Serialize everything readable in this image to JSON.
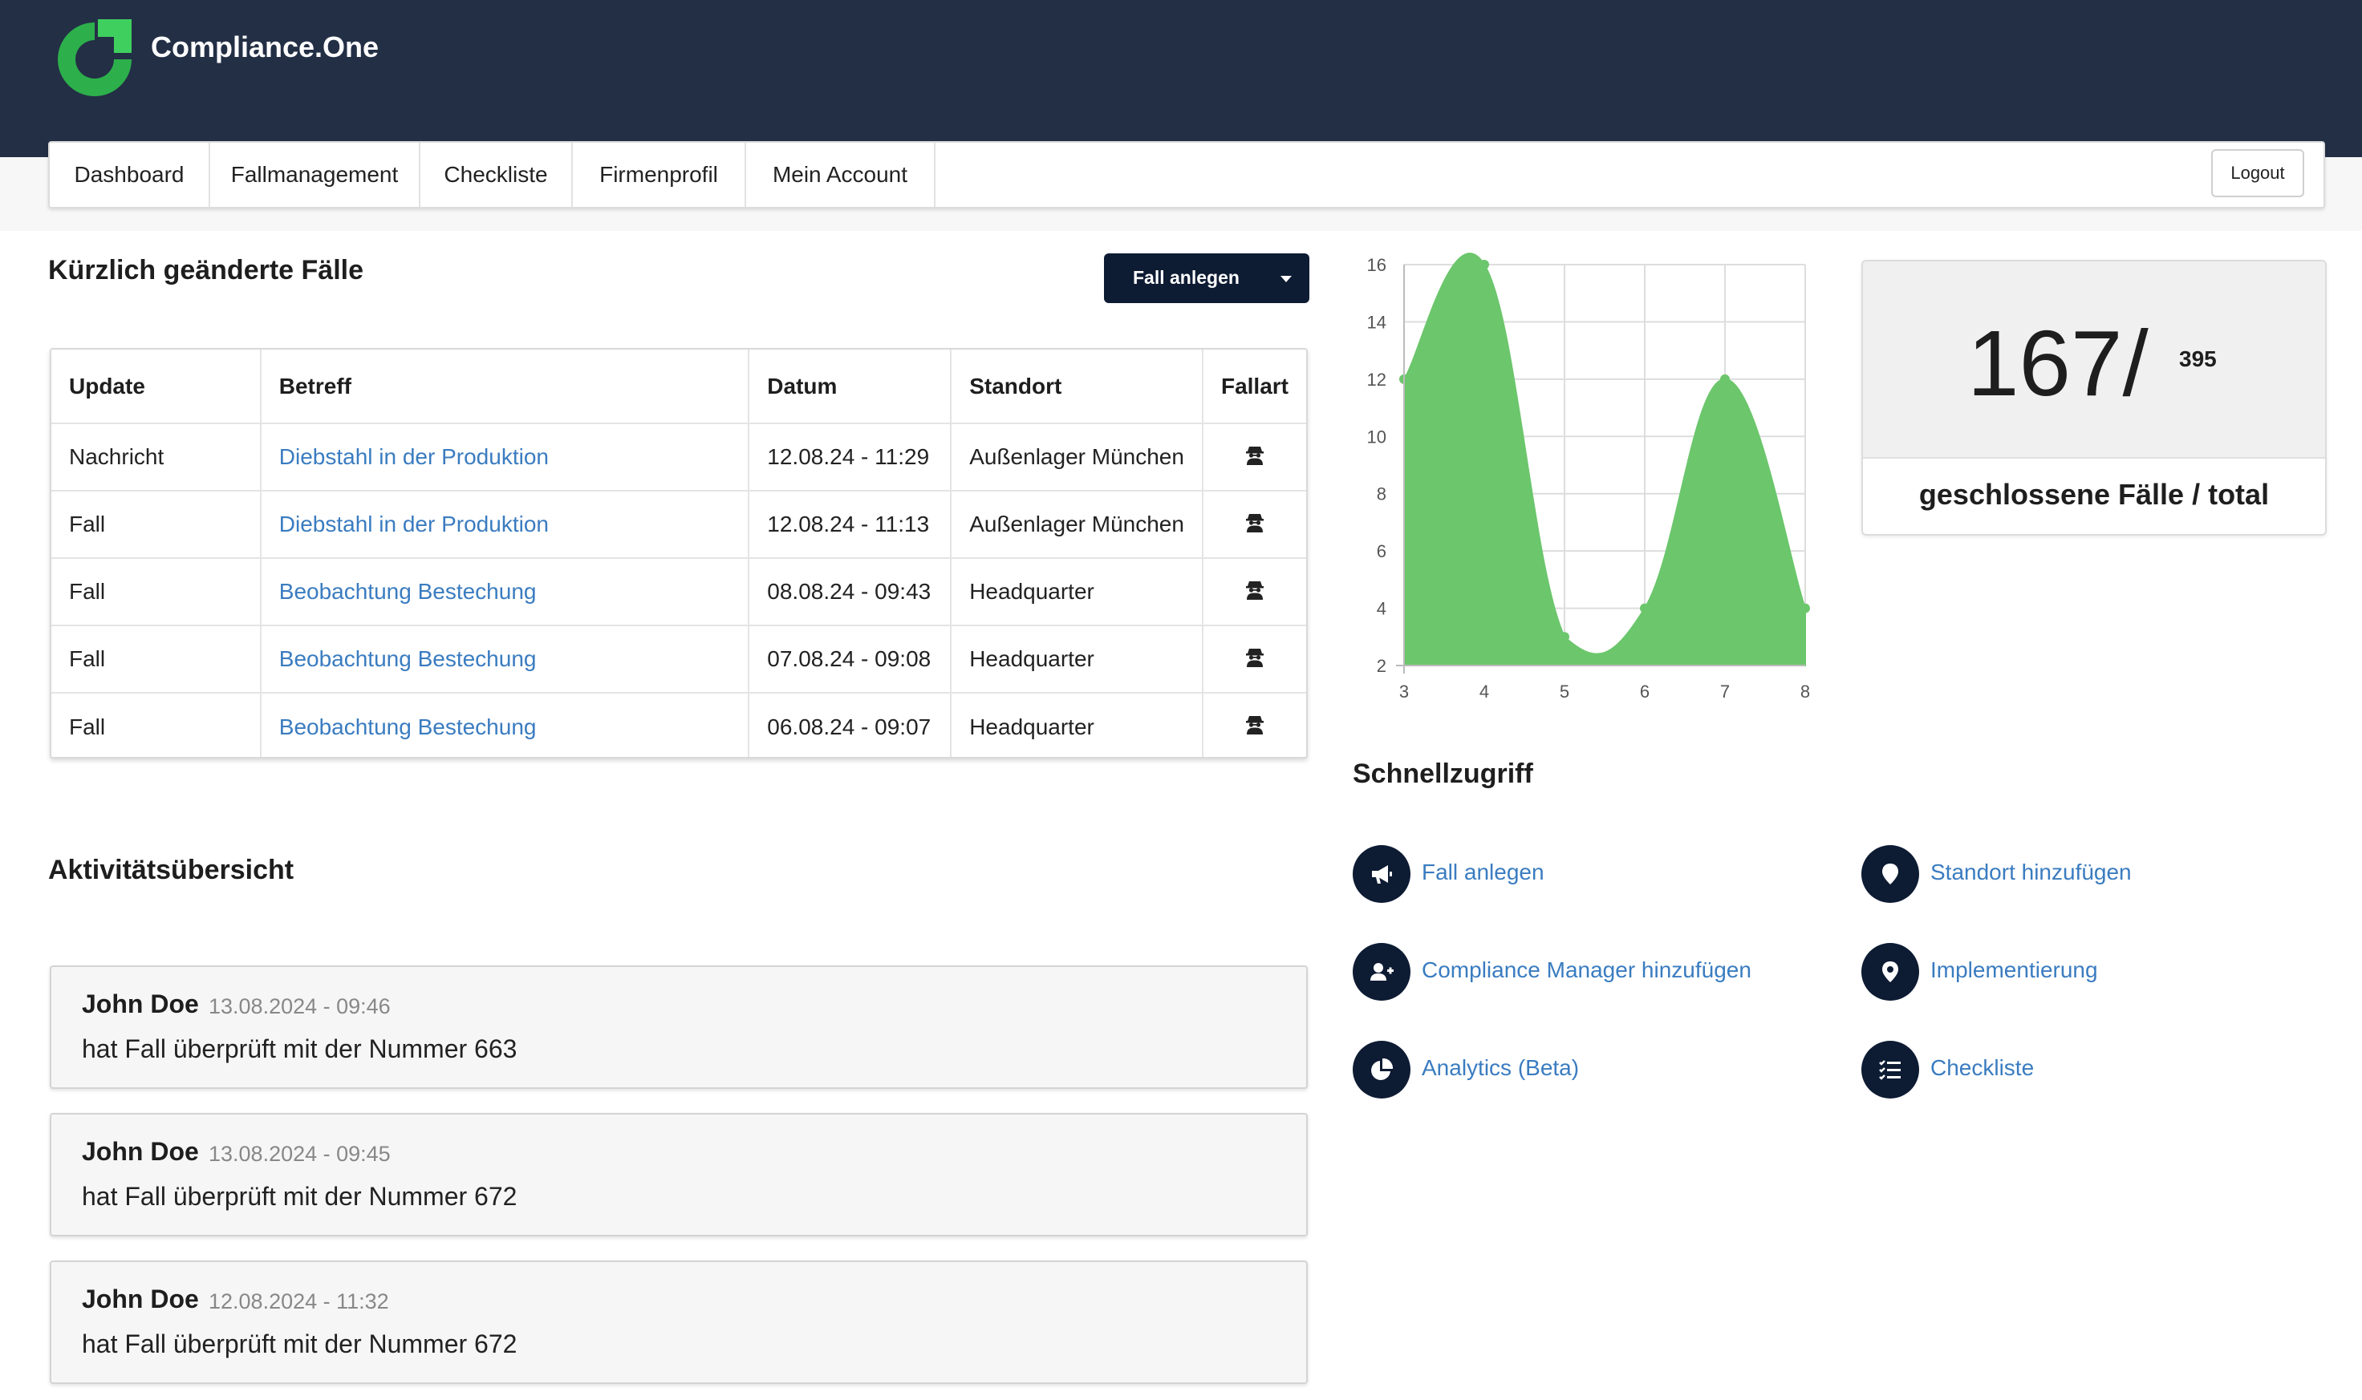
{
  "app": {
    "brand": "Compliance.One"
  },
  "nav": {
    "items": [
      "Dashboard",
      "Fallmanagement",
      "Checkliste",
      "Firmenprofil",
      "Mein Account"
    ],
    "logout": "Logout"
  },
  "recent": {
    "title": "Kürzlich geänderte Fälle",
    "create_button": "Fall anlegen",
    "columns": [
      "Update",
      "Betreff",
      "Datum",
      "Standort",
      "Fallart"
    ],
    "rows": [
      {
        "update": "Nachricht",
        "subject": "Diebstahl in der Produktion",
        "date": "12.08.24 - 11:29",
        "location": "Außenlager München",
        "type_icon": "anonymous-person-icon"
      },
      {
        "update": "Fall",
        "subject": "Diebstahl in der Produktion",
        "date": "12.08.24 - 11:13",
        "location": "Außenlager München",
        "type_icon": "anonymous-person-icon"
      },
      {
        "update": "Fall",
        "subject": "Beobachtung Bestechung",
        "date": "08.08.24 - 09:43",
        "location": "Headquarter",
        "type_icon": "anonymous-person-icon"
      },
      {
        "update": "Fall",
        "subject": "Beobachtung Bestechung",
        "date": "07.08.24 - 09:08",
        "location": "Headquarter",
        "type_icon": "anonymous-person-icon"
      },
      {
        "update": "Fall",
        "subject": "Beobachtung Bestechung",
        "date": "06.08.24 - 09:07",
        "location": "Headquarter",
        "type_icon": "anonymous-person-icon"
      }
    ]
  },
  "chart_data": {
    "type": "area",
    "x": [
      3,
      4,
      5,
      6,
      7,
      8
    ],
    "series": [
      {
        "values": [
          12,
          16,
          3,
          4,
          12,
          4
        ],
        "color": "#6cc66c"
      }
    ],
    "xlim": [
      3,
      8
    ],
    "ylim": [
      2,
      16
    ],
    "x_ticks": [
      "3",
      "4",
      "5",
      "6",
      "7",
      "8"
    ],
    "y_ticks": [
      "2",
      "4",
      "6",
      "8",
      "10",
      "12",
      "14",
      "16"
    ],
    "grid": true
  },
  "stats": {
    "closed": "167/",
    "total": "395",
    "caption": "geschlossene Fälle / total"
  },
  "quick": {
    "title": "Schnellzugriff",
    "items": [
      {
        "label": "Fall anlegen",
        "icon": "megaphone-icon"
      },
      {
        "label": "Standort hinzufügen",
        "icon": "map-marker-icon"
      },
      {
        "label": "Compliance Manager hinzufügen",
        "icon": "user-plus-icon"
      },
      {
        "label": "Implementierung",
        "icon": "location-pin-icon"
      },
      {
        "label": "Analytics (Beta)",
        "icon": "pie-chart-icon"
      },
      {
        "label": "Checkliste",
        "icon": "checklist-icon"
      }
    ]
  },
  "activity": {
    "title": "Aktivitätsübersicht",
    "items": [
      {
        "user": "John Doe",
        "time": "13.08.2024 - 09:46",
        "text": "hat Fall überprüft mit der Nummer 663"
      },
      {
        "user": "John Doe",
        "time": "13.08.2024 - 09:45",
        "text": "hat Fall überprüft mit der Nummer 672"
      },
      {
        "user": "John Doe",
        "time": "12.08.2024 - 11:32",
        "text": "hat Fall überprüft mit der Nummer 672"
      }
    ]
  },
  "colors": {
    "header_bg": "#232f45",
    "primary": "#0d1b33",
    "link": "#3a7cc0",
    "chart_fill": "#6cc66c",
    "logo_green": "#2db04b"
  }
}
